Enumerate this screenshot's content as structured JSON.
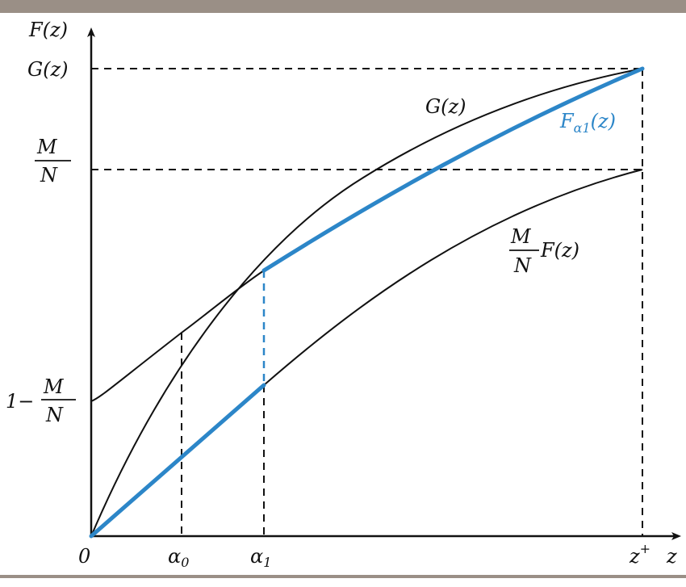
{
  "figure": {
    "y_axis_label": "F(z)",
    "x_axis_label": "z",
    "y_ticks": {
      "g_z": "G(z)",
      "m_over_n": {
        "numerator": "M",
        "denominator": "N"
      },
      "one_minus_m_over_n": {
        "prefix": "1−",
        "numerator": "M",
        "denominator": "N"
      }
    },
    "x_ticks": {
      "origin": "0",
      "alpha0": {
        "base": "α",
        "sub": "0"
      },
      "alpha1": {
        "base": "α",
        "sub": "1"
      },
      "zplus": {
        "base": "z",
        "sup": "+"
      }
    },
    "curve_labels": {
      "g_curve": "G(z)",
      "f_alpha1": {
        "base": "F",
        "sub": "α1",
        "tail": "(z)"
      },
      "scaled_f": {
        "numerator": "M",
        "denominator": "N",
        "tail": "F(z)"
      }
    },
    "colors": {
      "accent": "#2c86c8",
      "ink": "#111111",
      "rule": "#9a8f86"
    }
  }
}
